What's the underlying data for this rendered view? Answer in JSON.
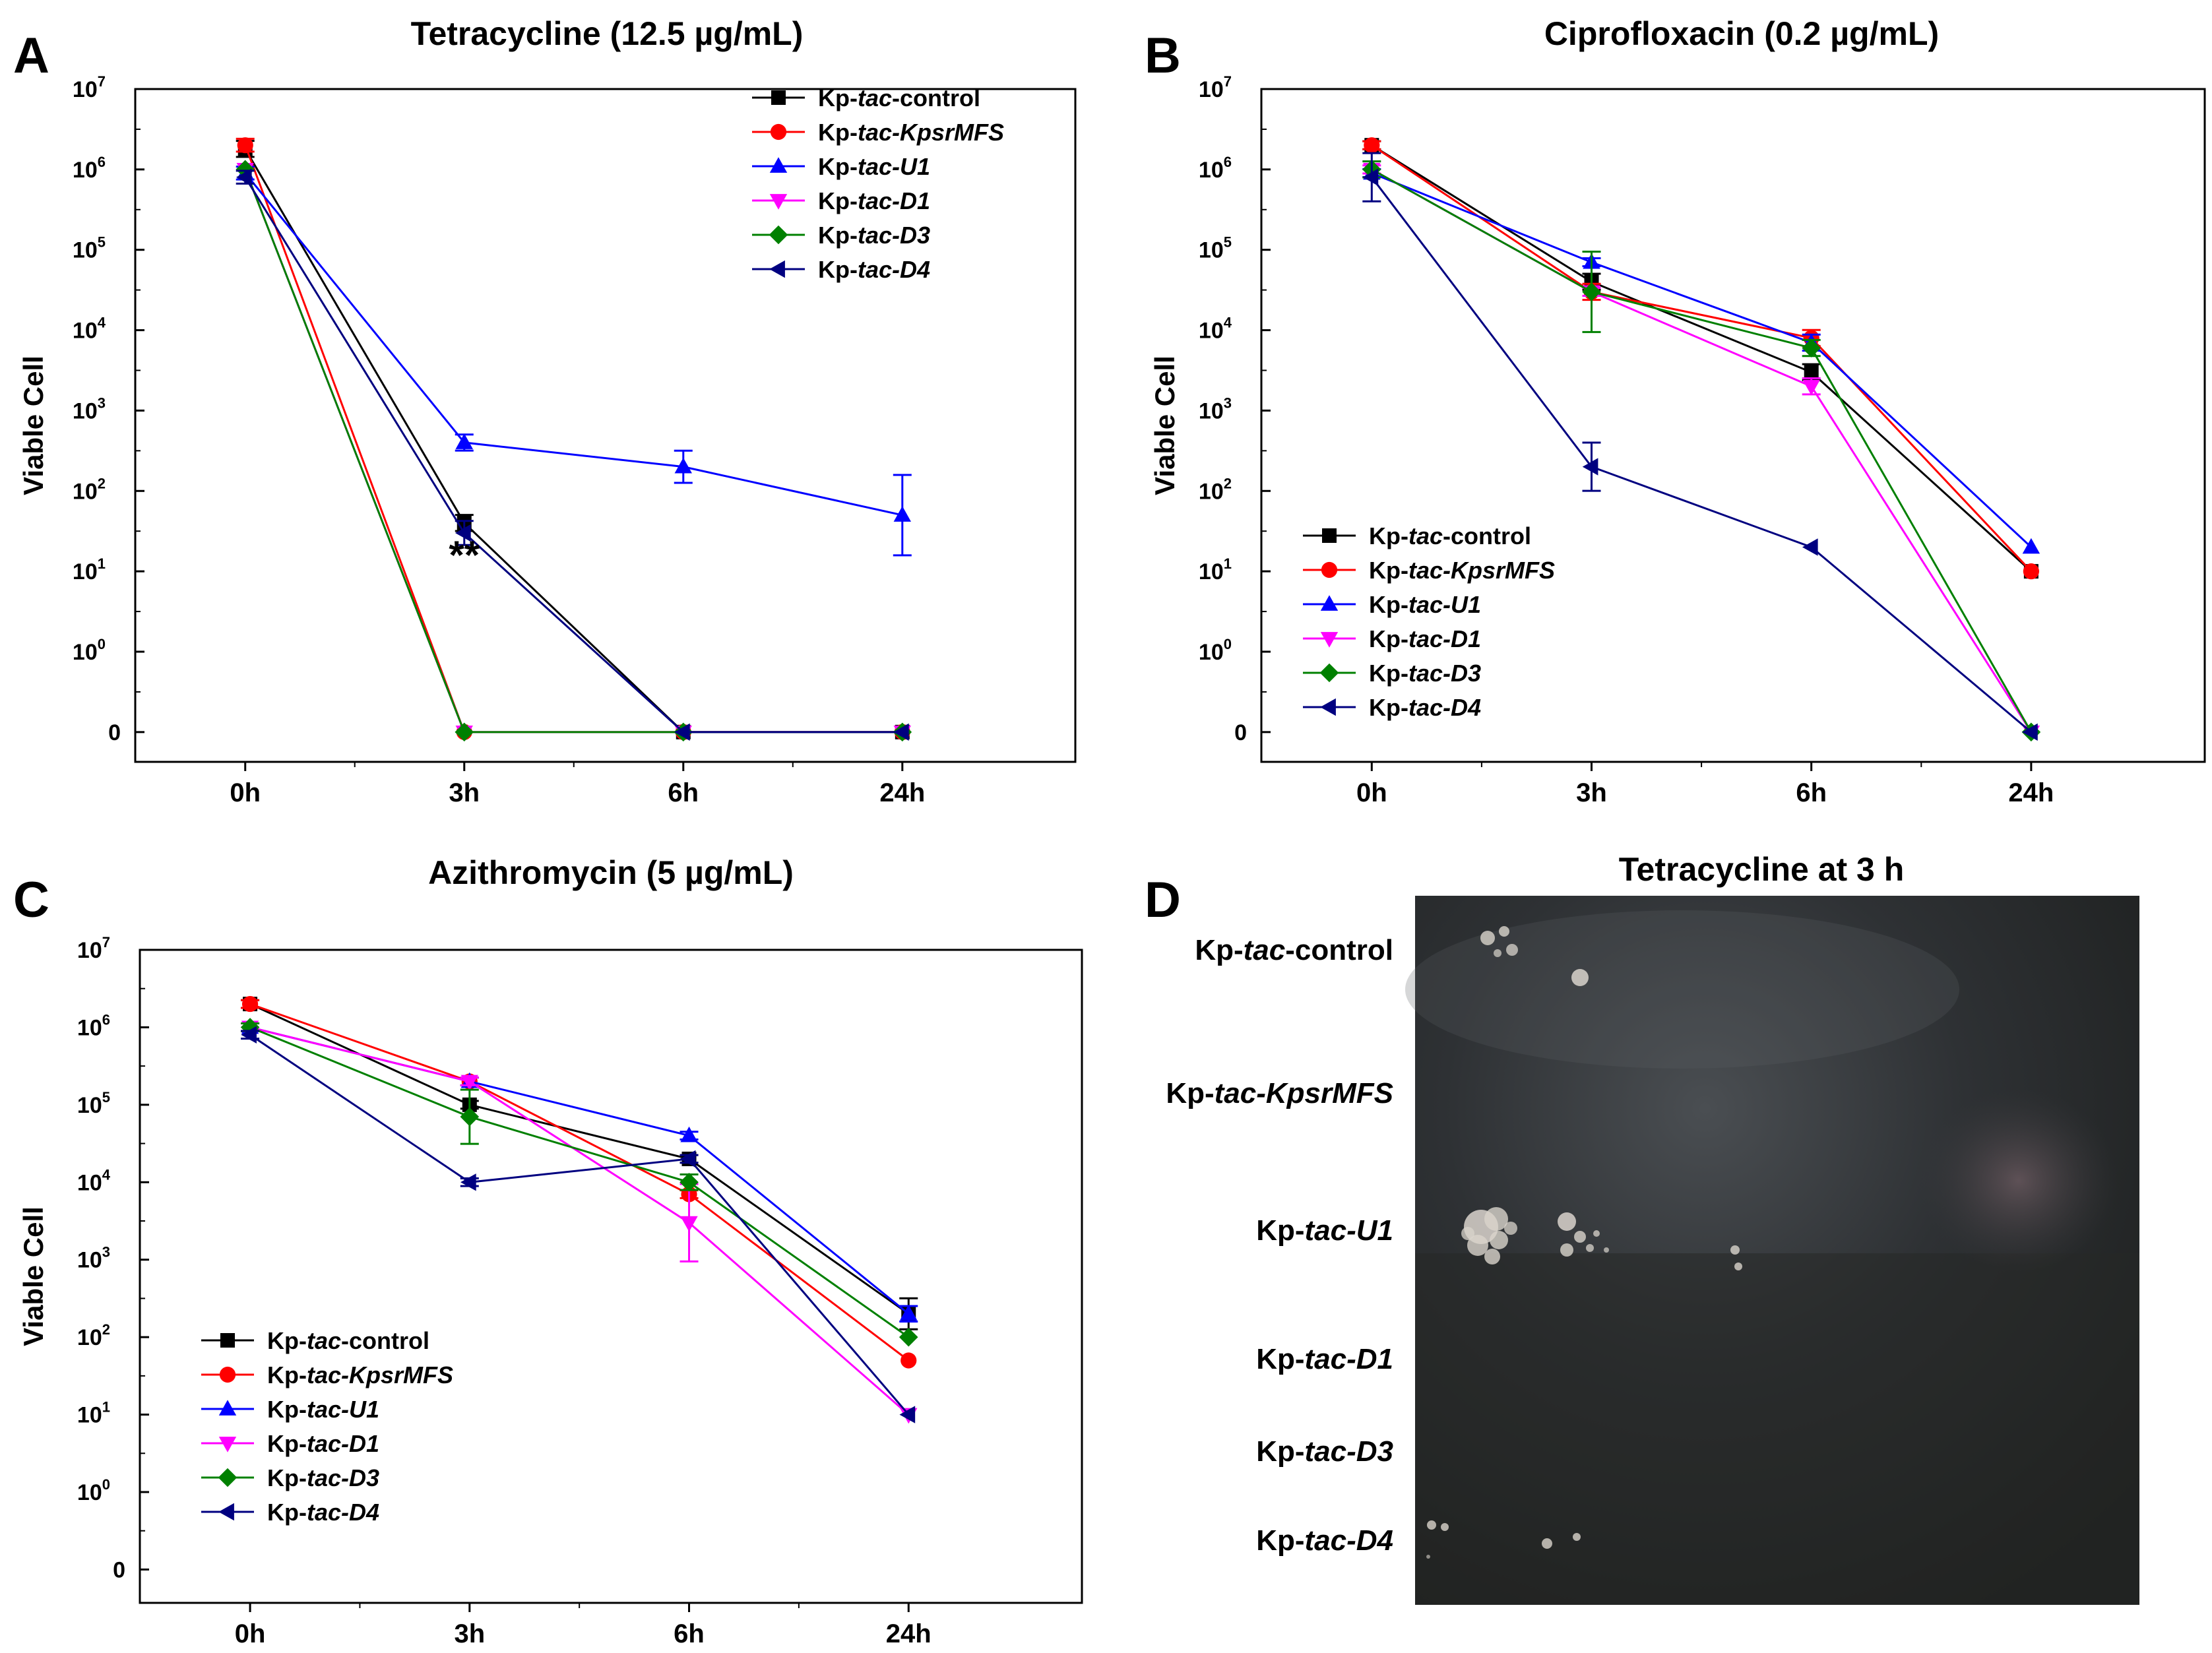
{
  "panels": {
    "A": {
      "label": "A"
    },
    "B": {
      "label": "B"
    },
    "C": {
      "label": "C"
    },
    "D": {
      "label": "D",
      "title": "Tetracycline at 3 h",
      "rows": [
        {
          "prefix": "Kp-",
          "ital": "tac",
          "suffix": "-control"
        },
        {
          "prefix": "Kp-",
          "ital": "tac-KpsrMFS",
          "suffix": ""
        },
        {
          "prefix": "Kp-",
          "ital": "tac-U1",
          "suffix": ""
        },
        {
          "prefix": "Kp-",
          "ital": "tac-D1",
          "suffix": ""
        },
        {
          "prefix": "Kp-",
          "ital": "tac-D3",
          "suffix": ""
        },
        {
          "prefix": "Kp-",
          "ital": "tac-D4",
          "suffix": ""
        }
      ]
    }
  },
  "strain_legend": [
    {
      "prefix": "Kp-",
      "ital": "tac",
      "suffix": "-control"
    },
    {
      "prefix": "Kp-",
      "ital": "tac-KpsrMFS",
      "suffix": ""
    },
    {
      "prefix": "Kp-",
      "ital": "tac-U1",
      "suffix": ""
    },
    {
      "prefix": "Kp-",
      "ital": "tac-D1",
      "suffix": ""
    },
    {
      "prefix": "Kp-",
      "ital": "tac-D3",
      "suffix": ""
    },
    {
      "prefix": "Kp-",
      "ital": "tac-D4",
      "suffix": ""
    }
  ],
  "series_styles": [
    {
      "color": "#000000",
      "marker": "square"
    },
    {
      "color": "#ff0000",
      "marker": "circle"
    },
    {
      "color": "#0000ff",
      "marker": "triangle-up"
    },
    {
      "color": "#ff00ff",
      "marker": "triangle-down"
    },
    {
      "color": "#008000",
      "marker": "diamond"
    },
    {
      "color": "#000080",
      "marker": "triangle-left"
    }
  ],
  "chart_data": [
    {
      "panel": "A",
      "type": "line",
      "title": "Tetracycline (12.5 µg/mL)",
      "xlabel": "",
      "ylabel": "Viable Cell",
      "y_scale": "log10 with 0 level",
      "categories": [
        "0h",
        "3h",
        "6h",
        "24h"
      ],
      "y_tick_labels": [
        "0",
        "10",
        "10",
        "10",
        "10",
        "10",
        "10",
        "10",
        "10"
      ],
      "y_tick_exponents": [
        "",
        "0",
        "1",
        "2",
        "3",
        "4",
        "5",
        "6",
        "7"
      ],
      "ylim_log10": [
        -1,
        7
      ],
      "legend_location": "top-right",
      "annotation": {
        "text": "**",
        "x": "3h",
        "y_log10": 1.2
      },
      "series": [
        {
          "name": "Kp-tac-control",
          "values": [
            1800000,
            40,
            0,
            0
          ],
          "err": [
            0.1,
            0.1,
            0,
            0
          ]
        },
        {
          "name": "Kp-tac-KpsrMFS",
          "values": [
            2000000,
            0,
            0,
            0
          ],
          "err": [
            0.08,
            0,
            0,
            0
          ]
        },
        {
          "name": "Kp-tac-U1",
          "values": [
            900000,
            400,
            200,
            50
          ],
          "err": [
            0.08,
            0.1,
            0.2,
            0.5
          ]
        },
        {
          "name": "Kp-tac-D1",
          "values": [
            1000000,
            0,
            0,
            0
          ],
          "err": [
            0,
            0,
            0,
            0
          ]
        },
        {
          "name": "Kp-tac-D3",
          "values": [
            1000000,
            0,
            0,
            0
          ],
          "err": [
            0,
            0,
            0,
            0
          ]
        },
        {
          "name": "Kp-tac-D4",
          "values": [
            800000,
            30,
            0,
            0
          ],
          "err": [
            0.08,
            0.15,
            0,
            0
          ]
        }
      ]
    },
    {
      "panel": "B",
      "type": "line",
      "title": "Ciprofloxacin (0.2 µg/mL)",
      "xlabel": "",
      "ylabel": "Viable Cell",
      "y_scale": "log10 with 0 level",
      "categories": [
        "0h",
        "3h",
        "6h",
        "24h"
      ],
      "y_tick_labels": [
        "0",
        "10",
        "10",
        "10",
        "10",
        "10",
        "10",
        "10",
        "10"
      ],
      "y_tick_exponents": [
        "",
        "0",
        "1",
        "2",
        "3",
        "4",
        "5",
        "6",
        "7"
      ],
      "ylim_log10": [
        -1,
        7
      ],
      "legend_location": "bottom-left",
      "series": [
        {
          "name": "Kp-tac-control",
          "values": [
            2000000,
            40000,
            3000,
            10
          ],
          "err": [
            0.05,
            0.1,
            0.1,
            0
          ]
        },
        {
          "name": "Kp-tac-KpsrMFS",
          "values": [
            2000000,
            30000,
            8000,
            10
          ],
          "err": [
            0.05,
            0.1,
            0.1,
            0
          ]
        },
        {
          "name": "Kp-tac-U1",
          "values": [
            900000,
            70000,
            7000,
            20
          ],
          "err": [
            0.05,
            0.05,
            0.1,
            0
          ]
        },
        {
          "name": "Kp-tac-D1",
          "values": [
            1000000,
            30000,
            2000,
            0
          ],
          "err": [
            0.05,
            0.05,
            0.1,
            0
          ]
        },
        {
          "name": "Kp-tac-D3",
          "values": [
            1000000,
            30000,
            6000,
            0
          ],
          "err": [
            0.1,
            0.5,
            0.1,
            0
          ]
        },
        {
          "name": "Kp-tac-D4",
          "values": [
            800000,
            200,
            20,
            0
          ],
          "err": [
            0.3,
            0.3,
            0,
            0
          ]
        }
      ]
    },
    {
      "panel": "C",
      "type": "line",
      "title": "Azithromycin (5 µg/mL)",
      "xlabel": "",
      "ylabel": "Viable Cell",
      "y_scale": "log10 with 0 level",
      "categories": [
        "0h",
        "3h",
        "6h",
        "24h"
      ],
      "y_tick_labels": [
        "0",
        "10",
        "10",
        "10",
        "10",
        "10",
        "10",
        "10",
        "10"
      ],
      "y_tick_exponents": [
        "",
        "0",
        "1",
        "2",
        "3",
        "4",
        "5",
        "6",
        "7"
      ],
      "ylim_log10": [
        -1,
        7
      ],
      "legend_location": "bottom-left",
      "series": [
        {
          "name": "Kp-tac-control",
          "values": [
            2000000,
            100000,
            20000,
            200
          ],
          "err": [
            0.05,
            0.05,
            0.05,
            0.2
          ]
        },
        {
          "name": "Kp-tac-KpsrMFS",
          "values": [
            2000000,
            200000,
            7000,
            50
          ],
          "err": [
            0.05,
            0.05,
            0.05,
            0
          ]
        },
        {
          "name": "Kp-tac-U1",
          "values": [
            1000000,
            200000,
            40000,
            200
          ],
          "err": [
            0.05,
            0.05,
            0.05,
            0.1
          ]
        },
        {
          "name": "Kp-tac-D1",
          "values": [
            1000000,
            200000,
            3000,
            10
          ],
          "err": [
            0.05,
            0.05,
            0.5,
            0
          ]
        },
        {
          "name": "Kp-tac-D3",
          "values": [
            1000000,
            70000,
            10000,
            100
          ],
          "err": [
            0.05,
            0.35,
            0.1,
            0
          ]
        },
        {
          "name": "Kp-tac-D4",
          "values": [
            800000,
            10000,
            20000,
            10
          ],
          "err": [
            0.05,
            0.05,
            0.05,
            0
          ]
        }
      ]
    }
  ]
}
